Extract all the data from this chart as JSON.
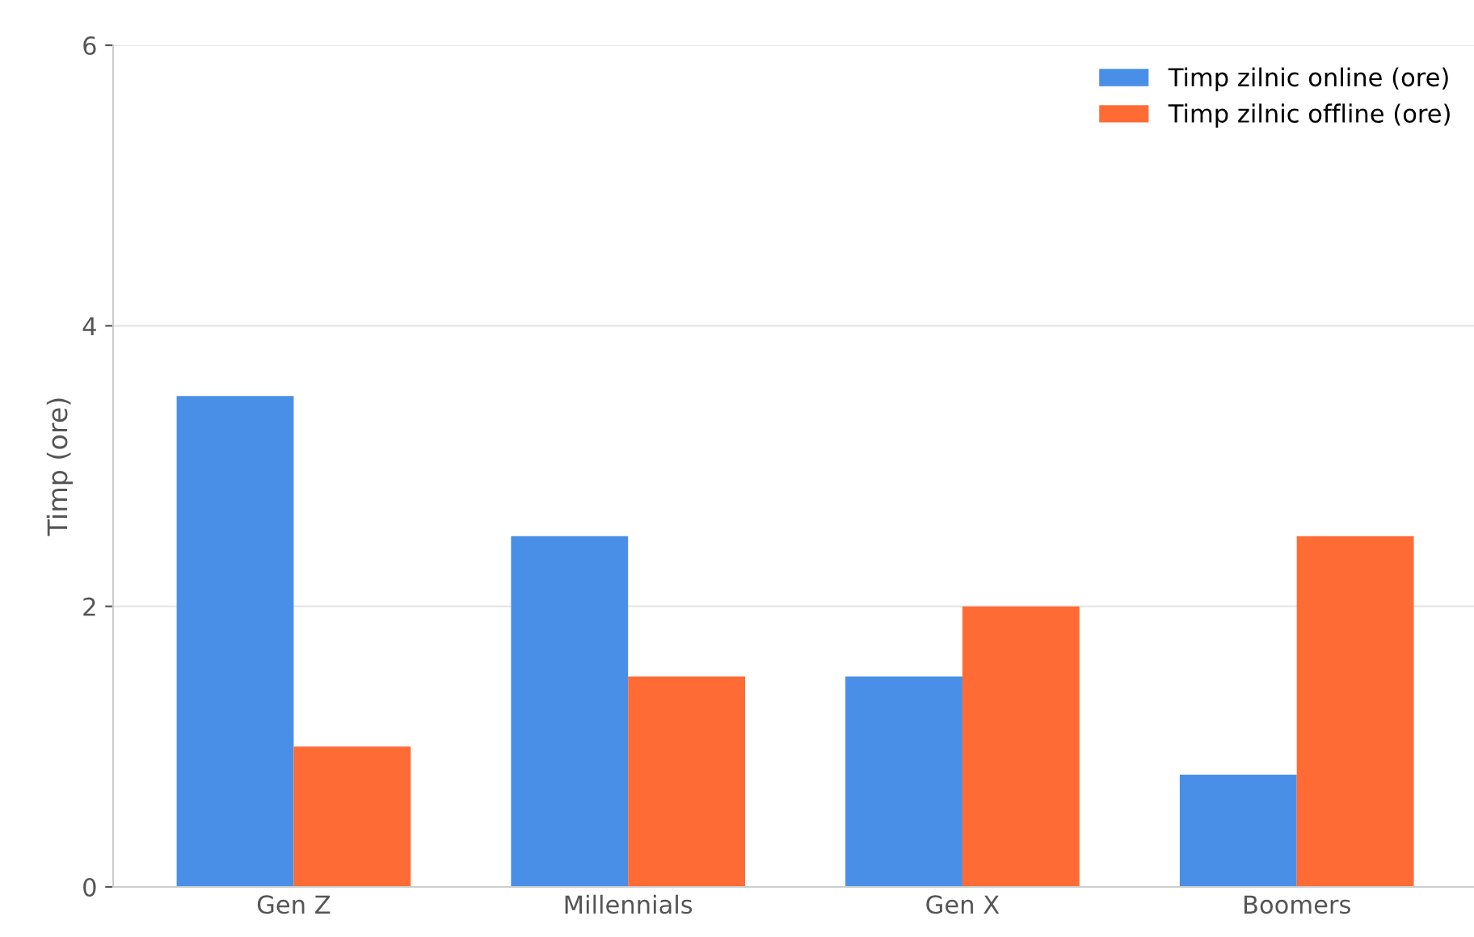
{
  "chart_data": {
    "type": "bar",
    "ylabel": "Timp (ore)",
    "categories": [
      "Gen Z",
      "Millennials",
      "Gen X",
      "Boomers"
    ],
    "series": [
      {
        "name": "Timp zilnic online (ore)",
        "color": "#4a8fe7",
        "values": [
          3.5,
          2.5,
          1.5,
          0.8
        ]
      },
      {
        "name": "Timp zilnic offline (ore)",
        "color": "#ff6b35",
        "values": [
          1,
          1.5,
          2,
          2.5
        ]
      }
    ],
    "ylim": [
      0,
      6
    ],
    "yticks": [
      0,
      2,
      4,
      6
    ],
    "grid": "y",
    "legend": "top right"
  }
}
